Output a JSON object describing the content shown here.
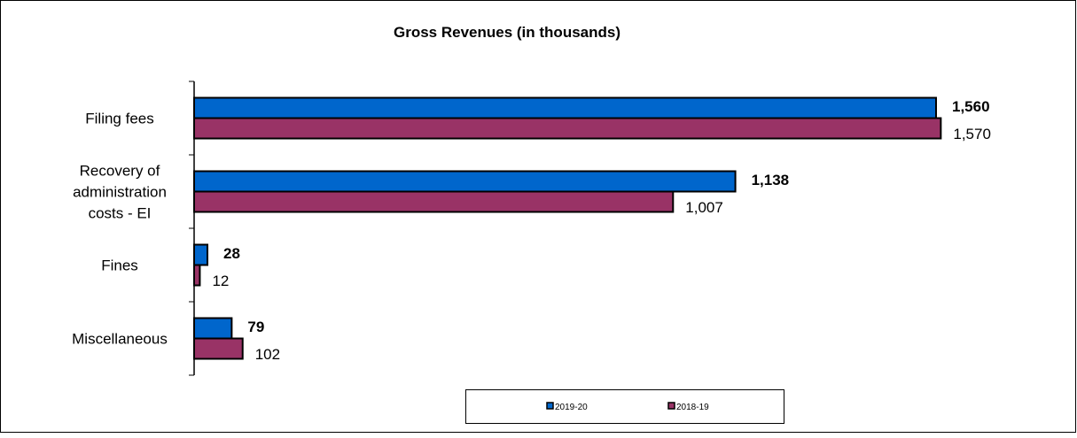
{
  "chart_data": {
    "type": "bar",
    "orientation": "horizontal",
    "title": "Gross Revenues (in thousands)",
    "categories": [
      [
        "Filing fees"
      ],
      [
        "Recovery of",
        "administration",
        "costs - EI"
      ],
      [
        "Fines"
      ],
      [
        "Miscellaneous"
      ]
    ],
    "series": [
      {
        "name": "2019-20",
        "values": [
          1560,
          1138,
          28,
          79
        ],
        "labels": [
          "1,560",
          "1,138",
          "28",
          "79"
        ],
        "color": "#0066CC",
        "label_bold": true
      },
      {
        "name": "2018-19",
        "values": [
          1570,
          1007,
          12,
          102
        ],
        "labels": [
          "1,570",
          "1,007",
          "12",
          "102"
        ],
        "color": "#993366",
        "label_bold": false
      }
    ],
    "xlim": [
      0,
      1700
    ],
    "grid": false,
    "legend_position": "bottom"
  }
}
